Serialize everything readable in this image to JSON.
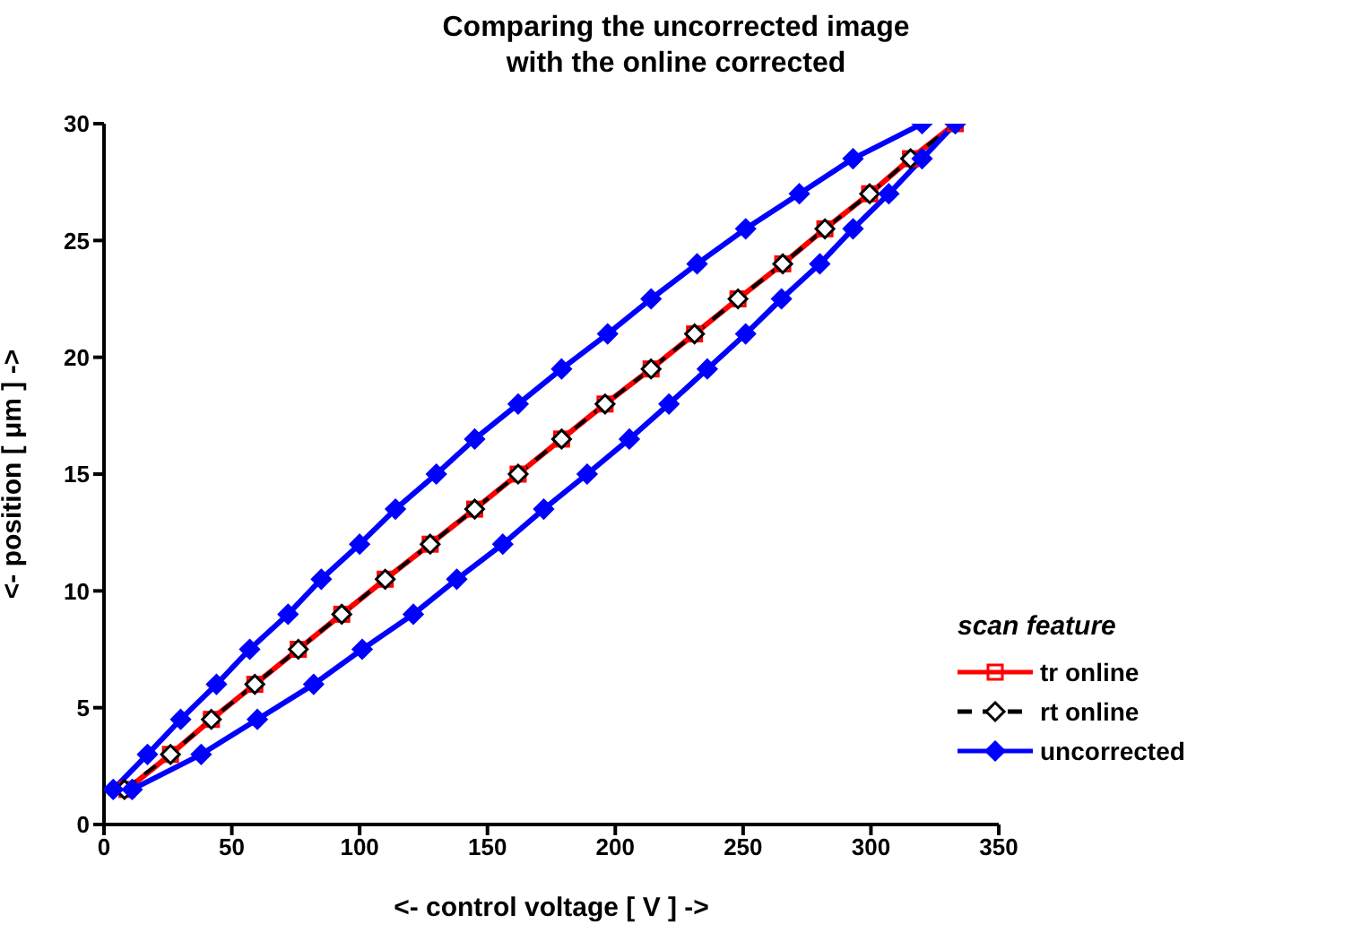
{
  "chart_data": {
    "type": "line",
    "title": "Comparing the uncorrected image with the online corrected",
    "xlabel": "<- control voltage [ V ] ->",
    "ylabel": "<- position [ μm ] ->",
    "legend_title": "scan feature",
    "legend": "bottom right",
    "grid": false,
    "xlim": [
      0,
      350
    ],
    "xticks": [
      0,
      50,
      100,
      150,
      200,
      250,
      300,
      350
    ],
    "ylim": [
      0,
      30
    ],
    "yticks": [
      0,
      5,
      10,
      15,
      20,
      25,
      30
    ],
    "series": [
      {
        "name": "tr online",
        "color": "#ff0000",
        "marker": "square",
        "line_style": "solid",
        "x": [
          9,
          26,
          42,
          59,
          76,
          93,
          110,
          127.6,
          145,
          162,
          179,
          196,
          214,
          231,
          248,
          265.5,
          282,
          299.5,
          315.5,
          333
        ],
        "values": [
          1.5,
          3,
          4.5,
          6,
          7.5,
          9,
          10.5,
          12,
          13.5,
          15,
          16.5,
          18,
          19.5,
          21,
          22.5,
          24,
          25.5,
          27,
          28.5,
          30
        ]
      },
      {
        "name": "rt online",
        "color": "#000000",
        "marker": "diamond",
        "line_style": "dashed",
        "x": [
          8,
          26,
          42,
          59,
          76,
          93,
          110,
          127.6,
          145,
          162,
          179,
          196,
          214,
          231,
          248,
          265.5,
          282,
          299.5,
          315.5,
          333
        ],
        "values": [
          1.5,
          3,
          4.5,
          6,
          7.5,
          9,
          10.5,
          12,
          13.5,
          15,
          16.5,
          18,
          19.5,
          21,
          22.5,
          24,
          25.5,
          27,
          28.5,
          30
        ]
      },
      {
        "name": "uncorrected",
        "color": "#0000ff",
        "marker": "diamond",
        "line_style": "solid",
        "x": [
          3.6,
          17,
          30,
          44,
          57,
          72,
          85,
          100,
          114,
          130,
          145,
          162,
          179,
          197,
          214,
          232,
          251,
          272,
          293,
          320,
          null,
          333,
          320,
          307,
          293,
          280,
          265,
          251,
          236,
          221,
          205.5,
          189,
          172,
          156,
          138,
          121,
          101,
          82,
          60,
          38,
          11
        ],
        "values": [
          1.5,
          3,
          4.5,
          6,
          7.5,
          9,
          10.5,
          12,
          13.5,
          15,
          16.5,
          18,
          19.5,
          21,
          22.5,
          24,
          25.5,
          27,
          28.5,
          30,
          null,
          30,
          28.5,
          27,
          25.5,
          24,
          22.5,
          21,
          19.5,
          18,
          16.5,
          15,
          13.5,
          12,
          10.5,
          9,
          7.5,
          6,
          4.5,
          3,
          1.5
        ]
      }
    ]
  }
}
